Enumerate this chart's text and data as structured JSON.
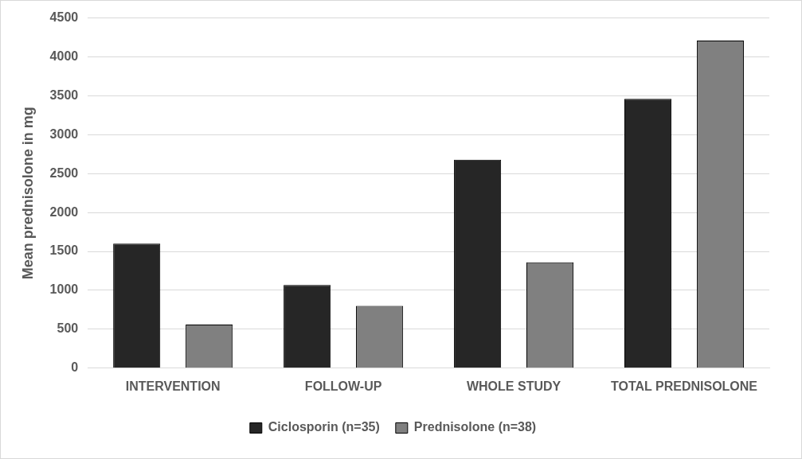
{
  "chart_data": {
    "type": "bar",
    "ylabel": "Mean prednisolone in mg",
    "categories": [
      "INTERVENTION",
      "FOLLOW-UP",
      "WHOLE STUDY",
      "TOTAL PREDNISOLONE"
    ],
    "series": [
      {
        "name": "Ciclosporin (n=35)",
        "color": "#262626",
        "values": [
          1600,
          1070,
          2680,
          3460
        ]
      },
      {
        "name": "Prednisolone (n=38)",
        "color": "#808080",
        "values": [
          560,
          800,
          1360,
          4210
        ]
      }
    ],
    "ylim": [
      0,
      4500
    ],
    "yticks": [
      0,
      500,
      1000,
      1500,
      2000,
      2500,
      3000,
      3500,
      4000,
      4500
    ],
    "grid": "y",
    "legend": "bottom"
  }
}
